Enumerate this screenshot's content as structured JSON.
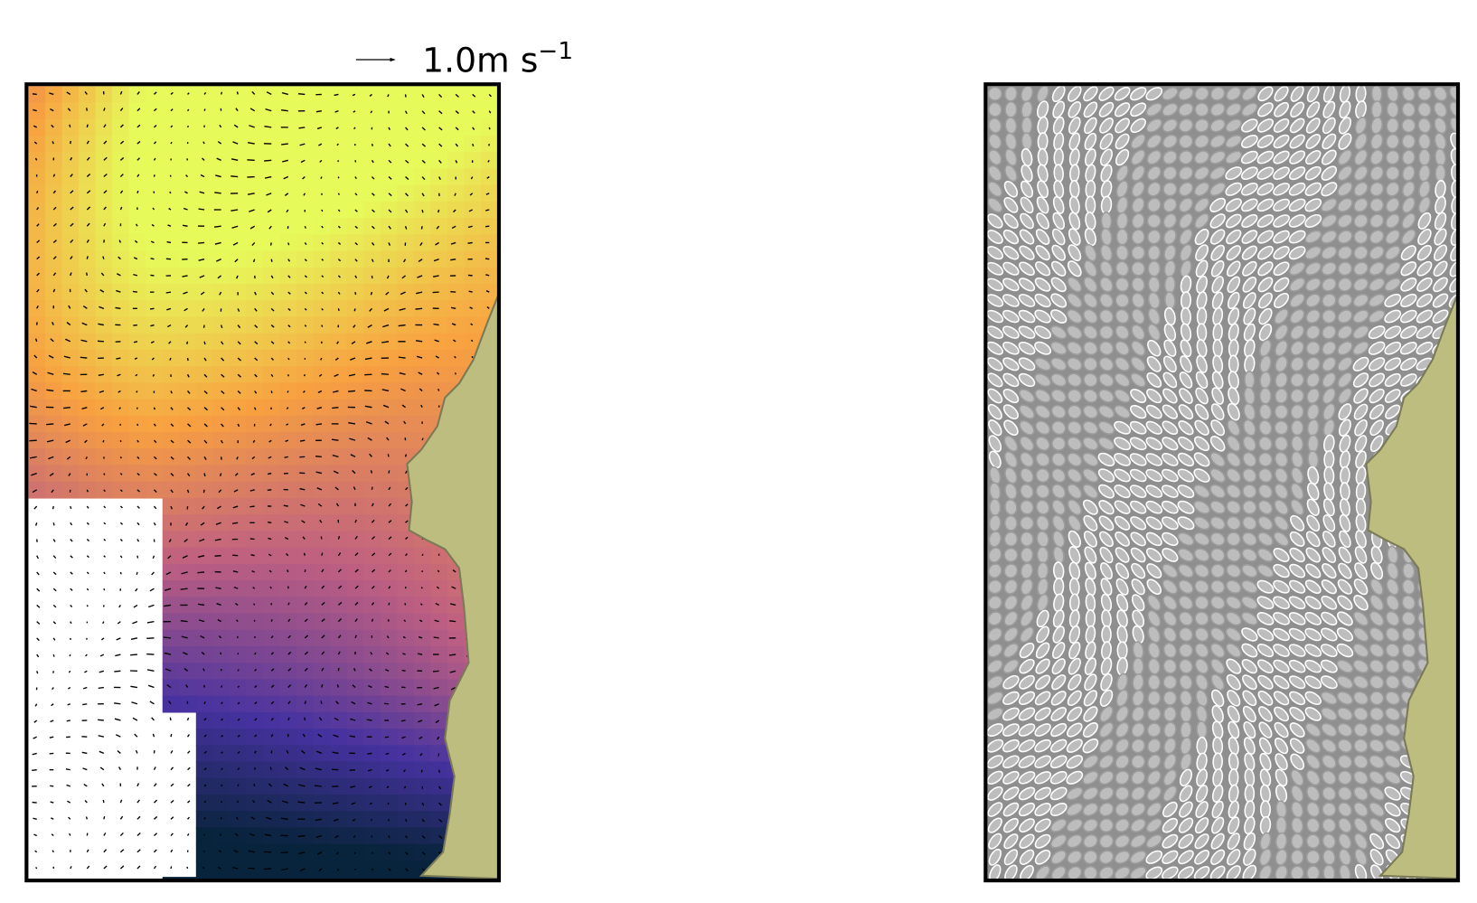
{
  "quiver_key": {
    "label": "1.0m s",
    "exponent": "−1"
  }
}
